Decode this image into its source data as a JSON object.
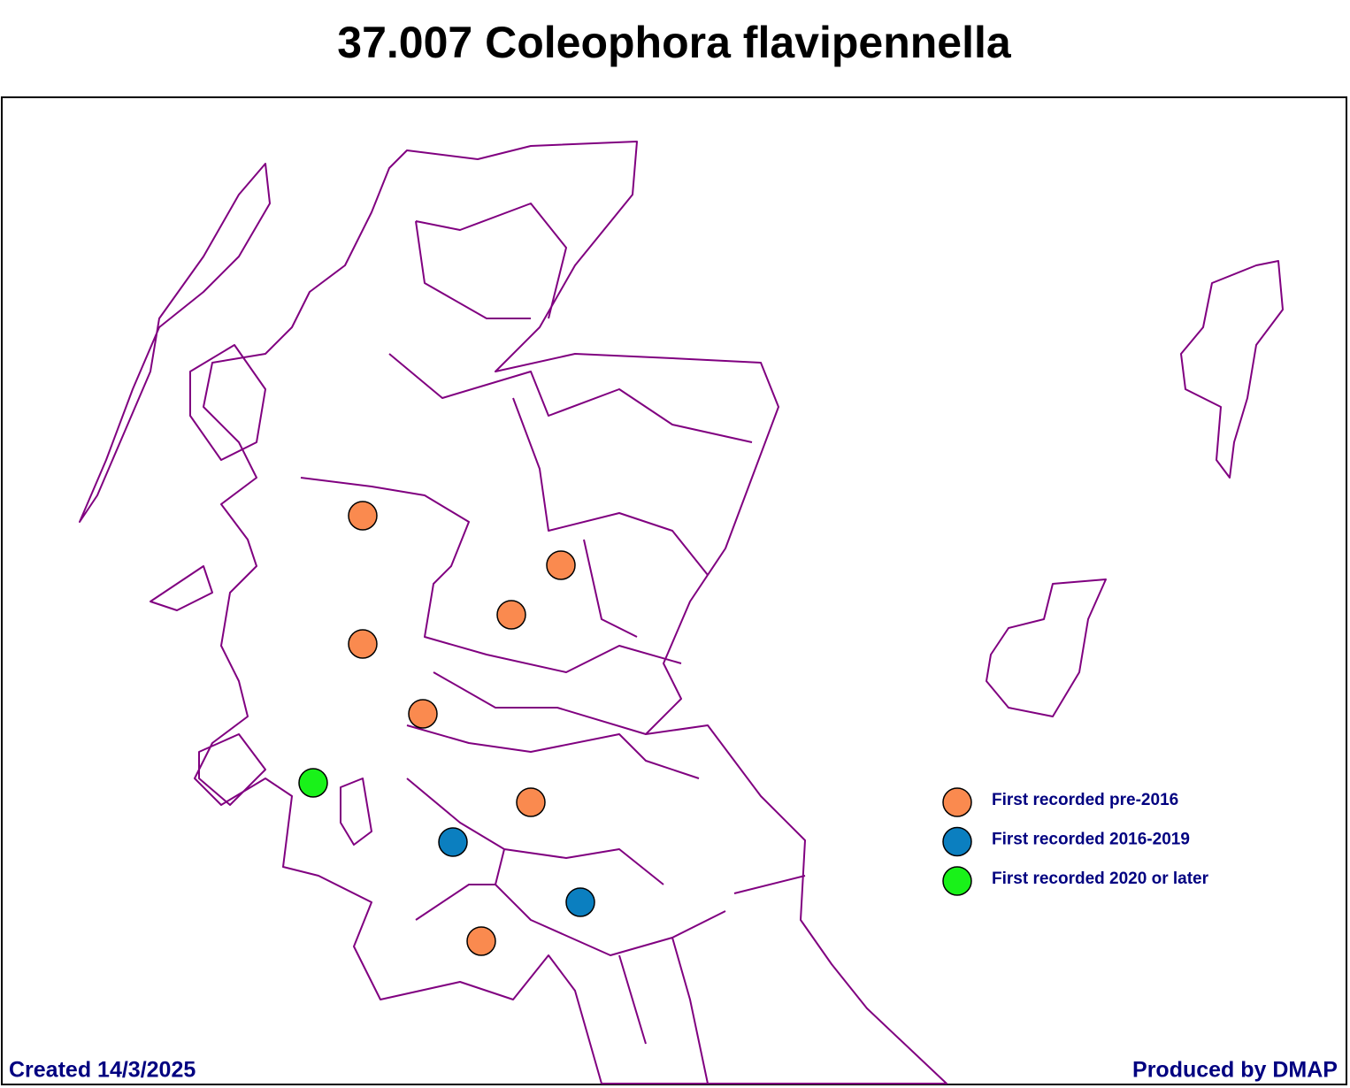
{
  "title": "37.007 Coleophora flavipennella",
  "legend": [
    {
      "label": "First recorded pre-2016",
      "color": "#fa8a4f"
    },
    {
      "label": "First recorded 2016-2019",
      "color": "#0b7fc0"
    },
    {
      "label": "First recorded 2020 or later",
      "color": "#19f219"
    }
  ],
  "footer": {
    "created": "Created 14/3/2025",
    "producer": "Produced by DMAP"
  }
}
